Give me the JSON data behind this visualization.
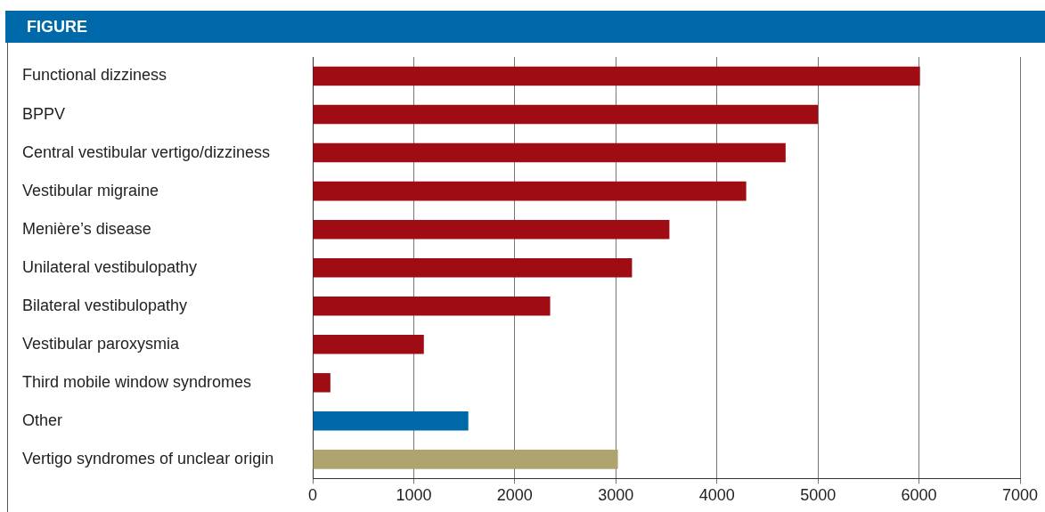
{
  "chart_data": {
    "type": "bar",
    "orientation": "horizontal",
    "title": "FIGURE",
    "categories": [
      "Functional dizziness",
      "BPPV",
      "Central vestibular vertigo/dizziness",
      "Vestibular migraine",
      "Menière’s disease",
      "Unilateral vestibulopathy",
      "Bilateral vestibulopathy",
      "Vestibular paroxysmia",
      "Third mobile window syndromes",
      "Other",
      "Vertigo syndromes of unclear origin"
    ],
    "values": [
      6010,
      5000,
      4680,
      4290,
      3530,
      3160,
      2350,
      1100,
      175,
      1540,
      3020
    ],
    "colors": [
      "#a00c14",
      "#a00c14",
      "#a00c14",
      "#a00c14",
      "#a00c14",
      "#a00c14",
      "#a00c14",
      "#a00c14",
      "#a00c14",
      "#0069aa",
      "#b0a46e"
    ],
    "xlim": [
      0,
      7000
    ],
    "xticks": [
      0,
      1000,
      2000,
      3000,
      4000,
      5000,
      6000,
      7000
    ],
    "grid": "x"
  }
}
